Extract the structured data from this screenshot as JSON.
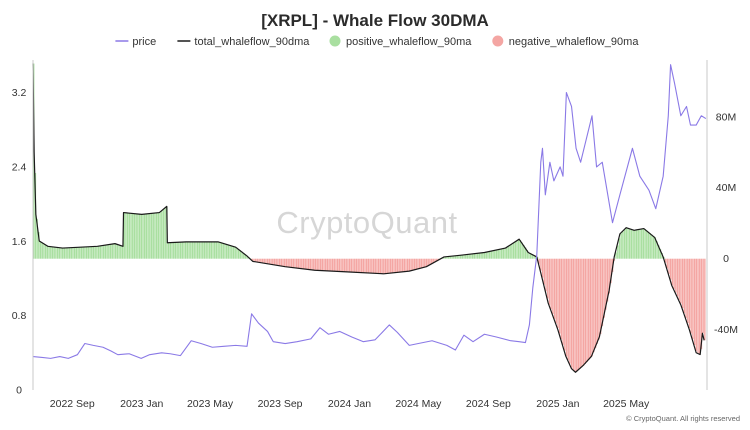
{
  "chart_data": {
    "type": "line",
    "title": "[XRPL] - Whale Flow 30DMA",
    "legend": {
      "placement": "top-center",
      "items": [
        {
          "name": "price",
          "style": "line",
          "color": "#8a79e6"
        },
        {
          "name": "total_whaleflow_90dma",
          "style": "line",
          "color": "#1a1a1a"
        },
        {
          "name": "positive_whaleflow_90ma",
          "style": "area",
          "color": "#a9dfa0"
        },
        {
          "name": "negative_whaleflow_90ma",
          "style": "area",
          "color": "#f4a6a3"
        }
      ]
    },
    "x_axis": {
      "type": "date",
      "range": [
        "2022-06-24",
        "2025-09-20"
      ],
      "tick_labels": [
        {
          "date": "2022-09-01",
          "label": "2022 Sep"
        },
        {
          "date": "2023-01-01",
          "label": "2023 Jan"
        },
        {
          "date": "2023-05-01",
          "label": "2023 May"
        },
        {
          "date": "2023-09-01",
          "label": "2023 Sep"
        },
        {
          "date": "2024-01-01",
          "label": "2024 Jan"
        },
        {
          "date": "2024-05-01",
          "label": "2024 May"
        },
        {
          "date": "2024-09-01",
          "label": "2024 Sep"
        },
        {
          "date": "2025-01-01",
          "label": "2025 Jan"
        },
        {
          "date": "2025-05-01",
          "label": "2025 May"
        }
      ]
    },
    "y_axis_left": {
      "name": "price",
      "range": [
        0,
        3.55
      ],
      "ticks": [
        0,
        0.8,
        1.6,
        2.4,
        3.2
      ],
      "tick_labels": [
        "0",
        "0.8",
        "1.6",
        "2.4",
        "3.2"
      ]
    },
    "y_axis_right": {
      "name": "whaleflow",
      "range": [
        -74000000,
        112000000
      ],
      "ticks": [
        -40000000,
        0,
        40000000,
        80000000
      ],
      "tick_labels": [
        "-40M",
        "0",
        "40M",
        "80M"
      ]
    },
    "series": [
      {
        "name": "price",
        "axis": "left",
        "points": [
          [
            "2022-06-24",
            0.36
          ],
          [
            "2022-07-10",
            0.35
          ],
          [
            "2022-07-25",
            0.34
          ],
          [
            "2022-08-10",
            0.36
          ],
          [
            "2022-08-25",
            0.34
          ],
          [
            "2022-09-10",
            0.38
          ],
          [
            "2022-09-23",
            0.5
          ],
          [
            "2022-10-08",
            0.48
          ],
          [
            "2022-10-25",
            0.46
          ],
          [
            "2022-11-08",
            0.42
          ],
          [
            "2022-11-20",
            0.38
          ],
          [
            "2022-12-10",
            0.39
          ],
          [
            "2022-12-31",
            0.34
          ],
          [
            "2023-01-15",
            0.38
          ],
          [
            "2023-02-05",
            0.4
          ],
          [
            "2023-02-20",
            0.39
          ],
          [
            "2023-03-10",
            0.37
          ],
          [
            "2023-03-29",
            0.53
          ],
          [
            "2023-04-15",
            0.5
          ],
          [
            "2023-05-05",
            0.46
          ],
          [
            "2023-05-25",
            0.47
          ],
          [
            "2023-06-15",
            0.48
          ],
          [
            "2023-07-05",
            0.47
          ],
          [
            "2023-07-13",
            0.82
          ],
          [
            "2023-07-25",
            0.72
          ],
          [
            "2023-08-10",
            0.63
          ],
          [
            "2023-08-20",
            0.52
          ],
          [
            "2023-09-10",
            0.5
          ],
          [
            "2023-10-01",
            0.52
          ],
          [
            "2023-10-25",
            0.55
          ],
          [
            "2023-11-10",
            0.67
          ],
          [
            "2023-11-25",
            0.6
          ],
          [
            "2023-12-15",
            0.63
          ],
          [
            "2024-01-05",
            0.57
          ],
          [
            "2024-01-25",
            0.52
          ],
          [
            "2024-02-15",
            0.54
          ],
          [
            "2024-03-11",
            0.7
          ],
          [
            "2024-03-25",
            0.62
          ],
          [
            "2024-04-15",
            0.48
          ],
          [
            "2024-05-01",
            0.5
          ],
          [
            "2024-05-25",
            0.53
          ],
          [
            "2024-06-20",
            0.48
          ],
          [
            "2024-07-05",
            0.43
          ],
          [
            "2024-07-20",
            0.59
          ],
          [
            "2024-08-05",
            0.52
          ],
          [
            "2024-08-25",
            0.6
          ],
          [
            "2024-09-15",
            0.57
          ],
          [
            "2024-10-10",
            0.53
          ],
          [
            "2024-10-25",
            0.52
          ],
          [
            "2024-11-05",
            0.51
          ],
          [
            "2024-11-12",
            0.7
          ],
          [
            "2024-11-18",
            1.1
          ],
          [
            "2024-11-25",
            1.45
          ],
          [
            "2024-12-02",
            2.45
          ],
          [
            "2024-12-05",
            2.6
          ],
          [
            "2024-12-10",
            2.1
          ],
          [
            "2024-12-18",
            2.45
          ],
          [
            "2024-12-25",
            2.25
          ],
          [
            "2025-01-05",
            2.4
          ],
          [
            "2025-01-10",
            2.3
          ],
          [
            "2025-01-16",
            3.2
          ],
          [
            "2025-01-25",
            3.05
          ],
          [
            "2025-02-02",
            2.6
          ],
          [
            "2025-02-10",
            2.45
          ],
          [
            "2025-02-20",
            2.7
          ],
          [
            "2025-03-02",
            2.95
          ],
          [
            "2025-03-10",
            2.4
          ],
          [
            "2025-03-20",
            2.45
          ],
          [
            "2025-04-07",
            1.8
          ],
          [
            "2025-04-20",
            2.1
          ],
          [
            "2025-05-12",
            2.6
          ],
          [
            "2025-05-25",
            2.3
          ],
          [
            "2025-06-10",
            2.15
          ],
          [
            "2025-06-22",
            1.95
          ],
          [
            "2025-07-05",
            2.3
          ],
          [
            "2025-07-14",
            2.95
          ],
          [
            "2025-07-18",
            3.5
          ],
          [
            "2025-07-25",
            3.3
          ],
          [
            "2025-08-05",
            2.95
          ],
          [
            "2025-08-15",
            3.05
          ],
          [
            "2025-08-22",
            2.85
          ],
          [
            "2025-09-01",
            2.85
          ],
          [
            "2025-09-10",
            2.95
          ],
          [
            "2025-09-18",
            2.92
          ]
        ]
      },
      {
        "name": "total_whaleflow_90dma",
        "axis": "right",
        "points": [
          [
            "2022-06-24",
            110000000
          ],
          [
            "2022-06-26",
            60000000
          ],
          [
            "2022-06-29",
            25000000
          ],
          [
            "2022-07-05",
            10000000
          ],
          [
            "2022-07-20",
            7000000
          ],
          [
            "2022-08-15",
            6000000
          ],
          [
            "2022-09-15",
            6500000
          ],
          [
            "2022-10-15",
            7000000
          ],
          [
            "2022-11-15",
            8500000
          ],
          [
            "2022-11-29",
            7000000
          ],
          [
            "2022-11-30",
            26000000
          ],
          [
            "2023-01-01",
            25000000
          ],
          [
            "2023-02-01",
            26000000
          ],
          [
            "2023-02-14",
            29500000
          ],
          [
            "2023-02-15",
            9000000
          ],
          [
            "2023-03-20",
            9500000
          ],
          [
            "2023-05-15",
            9500000
          ],
          [
            "2023-06-15",
            6500000
          ],
          [
            "2023-07-05",
            1500000
          ],
          [
            "2023-07-15",
            -1500000
          ],
          [
            "2023-09-10",
            -4500000
          ],
          [
            "2023-11-01",
            -6500000
          ],
          [
            "2024-01-01",
            -7500000
          ],
          [
            "2024-03-01",
            -8500000
          ],
          [
            "2024-04-15",
            -7000000
          ],
          [
            "2024-05-15",
            -4500000
          ],
          [
            "2024-06-15",
            1000000
          ],
          [
            "2024-07-15",
            2000000
          ],
          [
            "2024-08-25",
            3500000
          ],
          [
            "2024-10-01",
            6000000
          ],
          [
            "2024-10-25",
            11000000
          ],
          [
            "2024-11-10",
            3500000
          ],
          [
            "2024-11-25",
            1000000
          ],
          [
            "2024-12-02",
            -8000000
          ],
          [
            "2024-12-15",
            -25000000
          ],
          [
            "2025-01-01",
            -40000000
          ],
          [
            "2025-01-15",
            -55000000
          ],
          [
            "2025-01-25",
            -62000000
          ],
          [
            "2025-02-01",
            -64000000
          ],
          [
            "2025-02-15",
            -60000000
          ],
          [
            "2025-03-01",
            -55000000
          ],
          [
            "2025-03-15",
            -44000000
          ],
          [
            "2025-04-01",
            -18000000
          ],
          [
            "2025-04-10",
            1000000
          ],
          [
            "2025-04-20",
            14000000
          ],
          [
            "2025-05-01",
            17500000
          ],
          [
            "2025-05-15",
            16000000
          ],
          [
            "2025-06-01",
            17000000
          ],
          [
            "2025-06-20",
            12000000
          ],
          [
            "2025-07-05",
            1000000
          ],
          [
            "2025-07-20",
            -15000000
          ],
          [
            "2025-08-05",
            -26000000
          ],
          [
            "2025-08-20",
            -40000000
          ],
          [
            "2025-09-01",
            -53000000
          ],
          [
            "2025-09-08",
            -54000000
          ],
          [
            "2025-09-12",
            -42000000
          ],
          [
            "2025-09-15",
            -46000000
          ]
        ]
      }
    ],
    "watermark": "CryptoQuant",
    "footer": "© CryptoQuant. All rights reserved"
  }
}
